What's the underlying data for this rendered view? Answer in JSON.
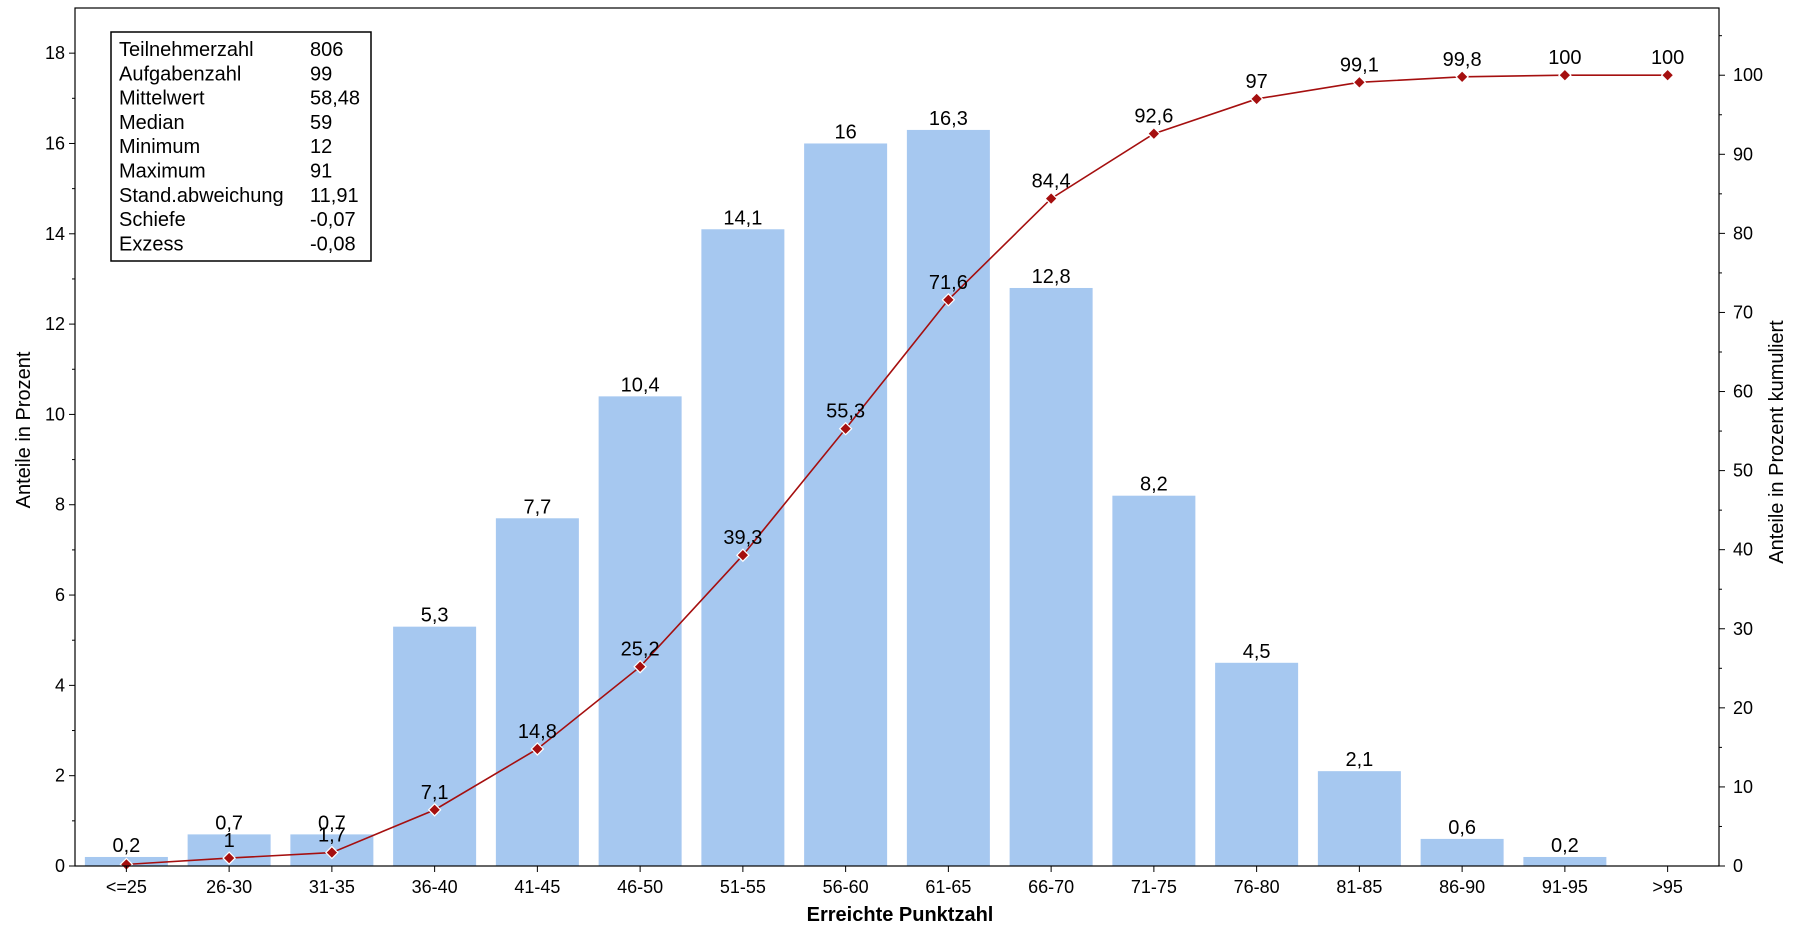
{
  "chart_data": {
    "type": "bar",
    "xlabel": "Erreichte Punktzahl",
    "ylabel": "Anteile in Prozent",
    "ylabel_right": "Anteile in Prozent kumuliert",
    "ylim": [
      0,
      19
    ],
    "ylim_right": [
      0,
      108.5
    ],
    "yticks": [
      "0",
      "2",
      "4",
      "6",
      "8",
      "10",
      "12",
      "14",
      "16",
      "18"
    ],
    "yticks_right": [
      "0",
      "10",
      "20",
      "30",
      "40",
      "50",
      "60",
      "70",
      "80",
      "90",
      "100"
    ],
    "grid": false,
    "categories": [
      "<=25",
      "26-30",
      "31-35",
      "36-40",
      "41-45",
      "46-50",
      "51-55",
      "56-60",
      "61-65",
      "66-70",
      "71-75",
      "76-80",
      "81-85",
      "86-90",
      "91-95",
      ">95"
    ],
    "series": [
      {
        "type": "bar",
        "axis": "left",
        "values": [
          0.2,
          0.7,
          0.7,
          5.3,
          7.7,
          10.4,
          14.1,
          16,
          16.3,
          12.8,
          8.2,
          4.5,
          2.1,
          0.6,
          0.2,
          0
        ],
        "labels": [
          "0,2",
          "0,7",
          "0,7",
          "5,3",
          "7,7",
          "10,4",
          "14,1",
          "16",
          "16,3",
          "12,8",
          "8,2",
          "4,5",
          "2,1",
          "0,6",
          "0,2",
          ""
        ],
        "color": "#a6c8f0"
      },
      {
        "type": "line",
        "axis": "right",
        "values": [
          0.2,
          1,
          1.7,
          7.1,
          14.8,
          25.2,
          39.3,
          55.3,
          71.6,
          84.4,
          92.6,
          97,
          99.1,
          99.8,
          100,
          100
        ],
        "labels": [
          "",
          "1",
          "1,7",
          "7,1",
          "14,8",
          "25,2",
          "39,3",
          "55,3",
          "71,6",
          "84,4",
          "92,6",
          "97",
          "99,1",
          "99,8",
          "100",
          "100"
        ],
        "color": "#a50f0f"
      }
    ],
    "stats_box": [
      {
        "key": "Teilnehmerzahl",
        "value": "806"
      },
      {
        "key": "Aufgabenzahl",
        "value": "99"
      },
      {
        "key": "Mittelwert",
        "value": "58,48"
      },
      {
        "key": "Median",
        "value": "59"
      },
      {
        "key": "Minimum",
        "value": "12"
      },
      {
        "key": "Maximum",
        "value": "91"
      },
      {
        "key": "Stand.abweichung",
        "value": "11,91"
      },
      {
        "key": "Schiefe",
        "value": "-0,07"
      },
      {
        "key": "Exzess",
        "value": "-0,08"
      }
    ]
  }
}
